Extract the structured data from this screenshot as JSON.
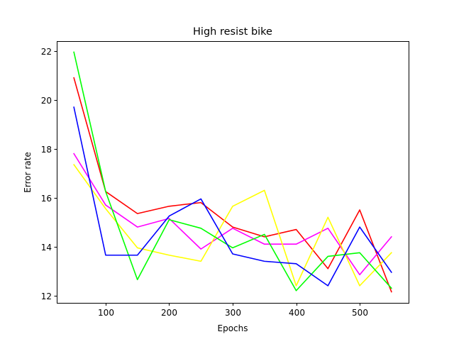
{
  "chart_data": {
    "type": "line",
    "title": "High resist bike",
    "xlabel": "Epochs",
    "ylabel": "Error rate",
    "xlim": [
      23,
      577
    ],
    "ylim": [
      11.7,
      22.4
    ],
    "xticks": [
      100,
      200,
      300,
      400,
      500
    ],
    "yticks": [
      12,
      14,
      16,
      18,
      20,
      22
    ],
    "x": [
      50,
      100,
      150,
      200,
      250,
      300,
      350,
      400,
      450,
      500,
      550
    ],
    "grid": false,
    "legend": "none",
    "series": [
      {
        "color": "#ff0000",
        "values": [
          20.9,
          16.25,
          15.35,
          15.65,
          15.8,
          14.8,
          14.4,
          14.7,
          13.1,
          15.5,
          12.15
        ]
      },
      {
        "color": "#ff00ff",
        "values": [
          17.8,
          15.7,
          14.8,
          15.15,
          13.9,
          14.75,
          14.1,
          14.1,
          14.75,
          12.85,
          14.4
        ]
      },
      {
        "color": "#ffff00",
        "values": [
          17.35,
          15.55,
          13.95,
          13.65,
          13.4,
          15.65,
          16.3,
          12.4,
          15.2,
          12.4,
          13.75
        ]
      },
      {
        "color": "#00ff00",
        "values": [
          21.95,
          16.25,
          12.65,
          15.1,
          14.75,
          13.95,
          14.5,
          12.2,
          13.6,
          13.75,
          12.3
        ]
      },
      {
        "color": "#0000ff",
        "values": [
          19.7,
          13.65,
          13.65,
          15.25,
          15.95,
          13.7,
          13.4,
          13.3,
          12.4,
          14.8,
          12.95
        ]
      }
    ]
  }
}
